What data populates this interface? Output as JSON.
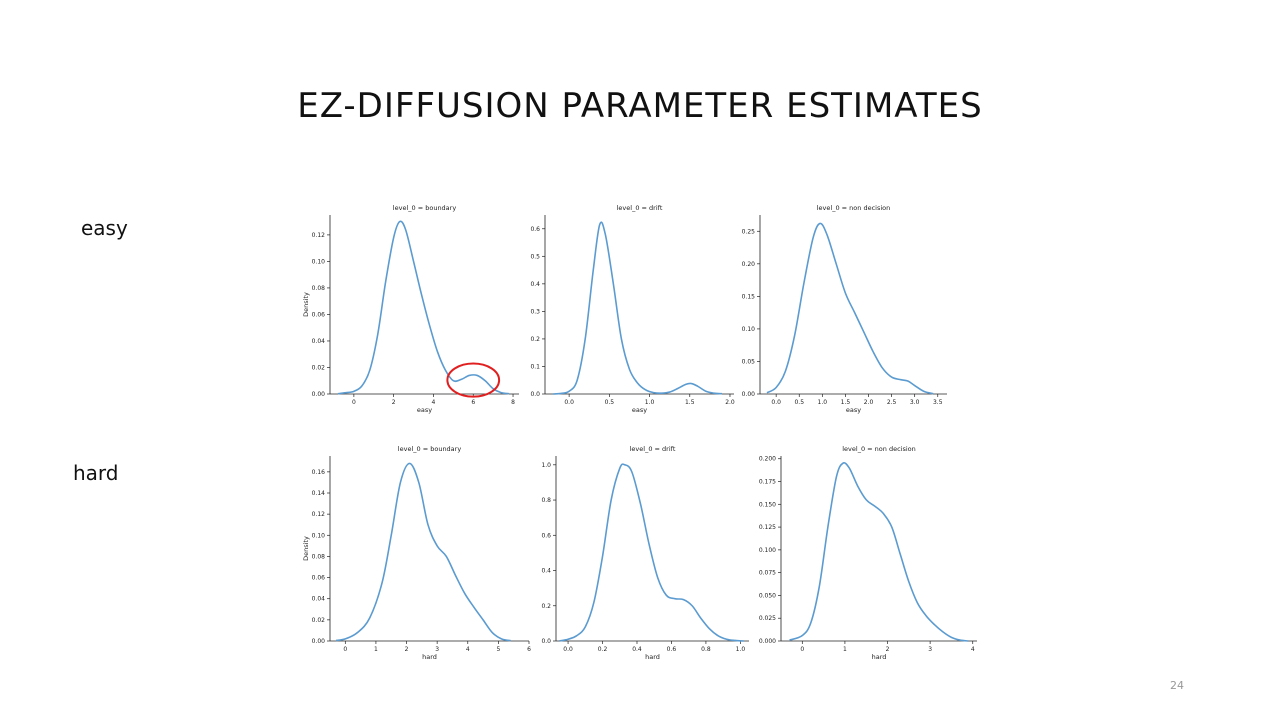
{
  "slide": {
    "title": "EZ-DIFFUSION PARAMETER ESTIMATES",
    "row_labels": {
      "easy": "easy",
      "hard": "hard"
    },
    "page_number": "24"
  },
  "colors": {
    "curve": "#5b9bd0",
    "highlight": "#e02020",
    "axis": "#222222"
  },
  "chart_data": [
    {
      "type": "line",
      "title": "level_0 = boundary",
      "xlabel": "easy",
      "ylabel": "Density",
      "xlim": [
        -1.2,
        8.3
      ],
      "ylim": [
        0,
        0.135
      ],
      "xticks": [
        0,
        2,
        4,
        6,
        8
      ],
      "xtick_labels": [
        "0",
        "2",
        "4",
        "6",
        "8"
      ],
      "yticks": [
        0,
        0.02,
        0.04,
        0.06,
        0.08,
        0.1,
        0.12
      ],
      "ytick_labels": [
        "0.00",
        "0.02",
        "0.04",
        "0.06",
        "0.08",
        "0.10",
        "0.12"
      ],
      "x": [
        -0.8,
        -0.4,
        0,
        0.4,
        0.8,
        1.2,
        1.6,
        2.0,
        2.3,
        2.6,
        3.0,
        3.4,
        3.8,
        4.2,
        4.6,
        5.0,
        5.4,
        5.8,
        6.2,
        6.6,
        7.0,
        7.4,
        7.8
      ],
      "y": [
        0.0002,
        0.001,
        0.002,
        0.006,
        0.018,
        0.045,
        0.085,
        0.118,
        0.13,
        0.124,
        0.1,
        0.075,
        0.052,
        0.032,
        0.018,
        0.01,
        0.011,
        0.014,
        0.014,
        0.01,
        0.004,
        0.001,
        0.0002
      ],
      "annotation": {
        "shape": "ellipse",
        "cx": 6.0,
        "cy": 0.0105,
        "rx": 1.3,
        "ry": 0.0125
      }
    },
    {
      "type": "line",
      "title": "level_0 = drift",
      "xlabel": "easy",
      "ylabel": "",
      "xlim": [
        -0.3,
        2.05
      ],
      "ylim": [
        0,
        0.65
      ],
      "xticks": [
        0,
        0.5,
        1.0,
        1.5,
        2.0
      ],
      "xtick_labels": [
        "0.0",
        "0.5",
        "1.0",
        "1.5",
        "2.0"
      ],
      "yticks": [
        0,
        0.1,
        0.2,
        0.3,
        0.4,
        0.5,
        0.6
      ],
      "ytick_labels": [
        "0.0",
        "0.1",
        "0.2",
        "0.3",
        "0.4",
        "0.5",
        "0.6"
      ],
      "x": [
        -0.2,
        -0.1,
        0.0,
        0.1,
        0.2,
        0.3,
        0.38,
        0.45,
        0.55,
        0.65,
        0.75,
        0.85,
        0.95,
        1.05,
        1.15,
        1.25,
        1.35,
        1.45,
        1.52,
        1.6,
        1.7,
        1.8,
        1.9
      ],
      "y": [
        0.0,
        0.002,
        0.01,
        0.05,
        0.2,
        0.45,
        0.615,
        0.58,
        0.4,
        0.2,
        0.09,
        0.04,
        0.015,
        0.005,
        0.003,
        0.007,
        0.02,
        0.035,
        0.038,
        0.028,
        0.01,
        0.003,
        0.001
      ]
    },
    {
      "type": "line",
      "title": "level_0 = non decision",
      "xlabel": "easy",
      "ylabel": "",
      "xlim": [
        -0.35,
        3.7
      ],
      "ylim": [
        0,
        0.275
      ],
      "xticks": [
        0,
        0.5,
        1.0,
        1.5,
        2.0,
        2.5,
        3.0,
        3.5
      ],
      "xtick_labels": [
        "0.0",
        "0.5",
        "1.0",
        "1.5",
        "2.0",
        "2.5",
        "3.0",
        "3.5"
      ],
      "yticks": [
        0,
        0.05,
        0.1,
        0.15,
        0.2,
        0.25
      ],
      "ytick_labels": [
        "0.00",
        "0.05",
        "0.10",
        "0.15",
        "0.20",
        "0.25"
      ],
      "x": [
        -0.2,
        0.0,
        0.2,
        0.4,
        0.6,
        0.8,
        0.95,
        1.1,
        1.3,
        1.5,
        1.7,
        1.9,
        2.1,
        2.3,
        2.5,
        2.7,
        2.85,
        3.0,
        3.2,
        3.4
      ],
      "y": [
        0.002,
        0.01,
        0.035,
        0.09,
        0.17,
        0.24,
        0.262,
        0.245,
        0.2,
        0.155,
        0.125,
        0.095,
        0.065,
        0.04,
        0.026,
        0.022,
        0.02,
        0.013,
        0.004,
        0.0005
      ]
    },
    {
      "type": "line",
      "title": "level_0 = boundary",
      "xlabel": "hard",
      "ylabel": "Density",
      "xlim": [
        -0.5,
        6.0
      ],
      "ylim": [
        0,
        0.175
      ],
      "xticks": [
        0,
        1,
        2,
        3,
        4,
        5,
        6
      ],
      "xtick_labels": [
        "0",
        "1",
        "2",
        "3",
        "4",
        "5",
        "6"
      ],
      "yticks": [
        0,
        0.02,
        0.04,
        0.06,
        0.08,
        0.1,
        0.12,
        0.14,
        0.16
      ],
      "ytick_labels": [
        "0.00",
        "0.02",
        "0.04",
        "0.06",
        "0.08",
        "0.10",
        "0.12",
        "0.14",
        "0.16"
      ],
      "x": [
        -0.3,
        0.0,
        0.4,
        0.8,
        1.2,
        1.5,
        1.8,
        2.1,
        2.4,
        2.7,
        3.0,
        3.3,
        3.6,
        3.9,
        4.2,
        4.5,
        4.8,
        5.1,
        5.4
      ],
      "y": [
        0.0005,
        0.002,
        0.008,
        0.022,
        0.055,
        0.1,
        0.15,
        0.168,
        0.15,
        0.11,
        0.09,
        0.08,
        0.062,
        0.045,
        0.032,
        0.02,
        0.008,
        0.002,
        0.0003
      ]
    },
    {
      "type": "line",
      "title": "level_0 = drift",
      "xlabel": "hard",
      "ylabel": "",
      "xlim": [
        -0.07,
        1.05
      ],
      "ylim": [
        0,
        1.05
      ],
      "xticks": [
        0,
        0.2,
        0.4,
        0.6,
        0.8,
        1.0
      ],
      "xtick_labels": [
        "0.0",
        "0.2",
        "0.4",
        "0.6",
        "0.8",
        "1.0"
      ],
      "yticks": [
        0,
        0.2,
        0.4,
        0.6,
        0.8,
        1.0
      ],
      "ytick_labels": [
        "0.0",
        "0.2",
        "0.4",
        "0.6",
        "0.8",
        "1.0"
      ],
      "x": [
        -0.05,
        0.0,
        0.05,
        0.1,
        0.15,
        0.2,
        0.25,
        0.3,
        0.33,
        0.37,
        0.42,
        0.47,
        0.52,
        0.57,
        0.62,
        0.67,
        0.72,
        0.77,
        0.82,
        0.87,
        0.92,
        0.97,
        1.02
      ],
      "y": [
        0.0,
        0.01,
        0.03,
        0.08,
        0.22,
        0.48,
        0.8,
        0.98,
        1.0,
        0.96,
        0.78,
        0.55,
        0.36,
        0.26,
        0.24,
        0.235,
        0.2,
        0.13,
        0.07,
        0.03,
        0.01,
        0.003,
        0.0
      ]
    },
    {
      "type": "line",
      "title": "level_0 = non decision",
      "xlabel": "hard",
      "ylabel": "",
      "xlim": [
        -0.5,
        4.1
      ],
      "ylim": [
        0,
        0.203
      ],
      "xticks": [
        0,
        1,
        2,
        3,
        4
      ],
      "xtick_labels": [
        "0",
        "1",
        "2",
        "3",
        "4"
      ],
      "yticks": [
        0,
        0.025,
        0.05,
        0.075,
        0.1,
        0.125,
        0.15,
        0.175,
        0.2
      ],
      "ytick_labels": [
        "0.000",
        "0.025",
        "0.050",
        "0.075",
        "0.100",
        "0.125",
        "0.150",
        "0.175",
        "0.200"
      ],
      "x": [
        -0.3,
        0.0,
        0.2,
        0.4,
        0.6,
        0.8,
        0.95,
        1.1,
        1.3,
        1.5,
        1.7,
        1.9,
        2.1,
        2.3,
        2.5,
        2.7,
        2.9,
        3.1,
        3.3,
        3.5,
        3.7,
        3.9
      ],
      "y": [
        0.001,
        0.006,
        0.02,
        0.06,
        0.125,
        0.18,
        0.195,
        0.19,
        0.17,
        0.155,
        0.148,
        0.14,
        0.125,
        0.095,
        0.065,
        0.042,
        0.028,
        0.018,
        0.01,
        0.004,
        0.001,
        0.0
      ]
    }
  ]
}
